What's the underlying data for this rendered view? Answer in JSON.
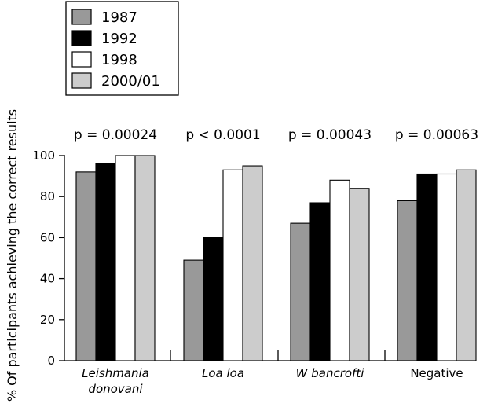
{
  "chart_data": {
    "type": "bar",
    "title": "",
    "xlabel": "",
    "ylabel": "% Of participants achieving the correct results",
    "ylim": [
      0,
      100
    ],
    "yticks": [
      0,
      20,
      40,
      60,
      80,
      100
    ],
    "categories": [
      {
        "lines": [
          "Leishmania",
          "donovani"
        ],
        "italic": true
      },
      {
        "lines": [
          "Loa loa"
        ],
        "italic": true
      },
      {
        "lines": [
          "W bancrofti"
        ],
        "italic": true
      },
      {
        "lines": [
          "Negative"
        ],
        "italic": false
      }
    ],
    "pvalues": [
      "p = 0.00024",
      "p < 0.0001",
      "p = 0.00043",
      "p = 0.00063"
    ],
    "legend_position": "top-left",
    "series": [
      {
        "name": "1987",
        "color": "#999999",
        "values": [
          92,
          49,
          67,
          78
        ]
      },
      {
        "name": "1992",
        "color": "#000000",
        "values": [
          96,
          60,
          77,
          91
        ]
      },
      {
        "name": "1998",
        "color": "#ffffff",
        "values": [
          100,
          93,
          88,
          91
        ]
      },
      {
        "name": "2000/01",
        "color": "#cccccc",
        "values": [
          100,
          95,
          84,
          93
        ]
      }
    ]
  }
}
